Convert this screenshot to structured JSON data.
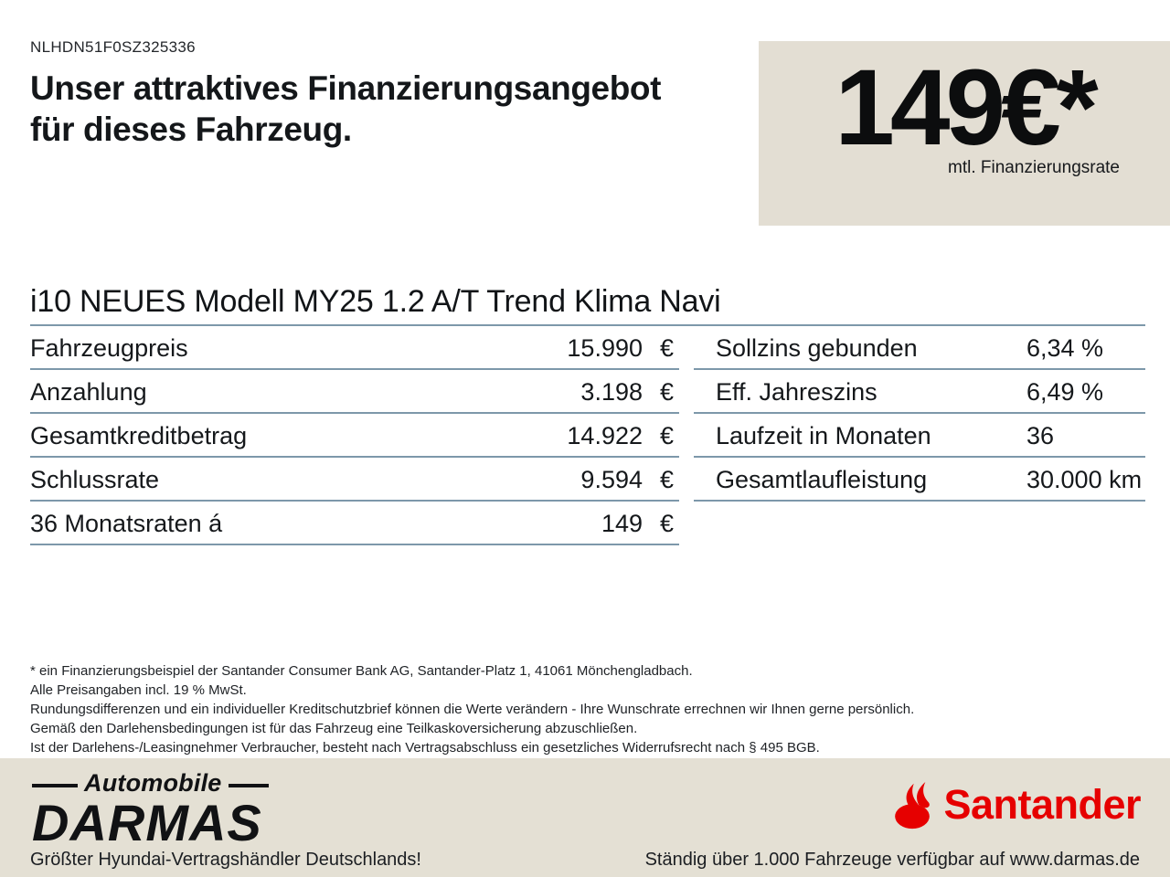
{
  "header": {
    "vin": "NLHDN51F0SZ325336",
    "heading_line1": "Unser attraktives Finanzierungsangebot",
    "heading_line2": "für dieses Fahrzeug."
  },
  "rate_box": {
    "amount": "149€*",
    "caption": "mtl. Finanzierungsrate",
    "bg_color": "#e3ded3"
  },
  "vehicle": {
    "title": "i10 NEUES Modell MY25 1.2 A/T Trend Klima Navi"
  },
  "finance_table": {
    "left_rows": [
      {
        "label": "Fahrzeugpreis",
        "value": "15.990",
        "unit": "€"
      },
      {
        "label": "Anzahlung",
        "value": "3.198",
        "unit": "€"
      },
      {
        "label": "Gesamtkreditbetrag",
        "value": "14.922",
        "unit": "€"
      },
      {
        "label": "Schlussrate",
        "value": "9.594",
        "unit": "€"
      },
      {
        "label": "36 Monatsraten á",
        "value": "149",
        "unit": "€"
      }
    ],
    "right_rows": [
      {
        "label": "Sollzins gebunden",
        "value": "6,34 %"
      },
      {
        "label": "Eff. Jahreszins",
        "value": "6,49 %"
      },
      {
        "label": "Laufzeit in Monaten",
        "value": "36"
      },
      {
        "label": "Gesamtlaufleistung",
        "value": "30.000 km"
      }
    ],
    "divider_color": "#7d98aa"
  },
  "fine_print": {
    "lines": [
      "* ein Finanzierungsbeispiel der Santander Consumer Bank AG, Santander-Platz 1, 41061 Mönchengladbach.",
      "Alle Preisangaben incl. 19 % MwSt.",
      "Rundungsdifferenzen und ein individueller Kreditschutzbrief können die Werte verändern - Ihre Wunschrate errechnen wir Ihnen gerne persönlich.",
      "Gemäß den Darlehensbedingungen ist für das Fahrzeug eine Teilkaskoversicherung abzuschließen.",
      "Ist der Darlehens-/Leasingnehmer Verbraucher, besteht nach Vertragsabschluss ein gesetzliches Widerrufsrecht nach § 495 BGB."
    ]
  },
  "footer": {
    "dealer_logo_top": "Automobile",
    "dealer_logo_name": "DARMAS",
    "dealer_tagline": "Größter Hyundai-Vertragshändler Deutschlands!",
    "bank_logo_name": "Santander",
    "bank_tagline": "Ständig über 1.000 Fahrzeuge verfügbar auf www.darmas.de",
    "santander_red": "#e60000",
    "bg_color": "#e4e0d4"
  }
}
